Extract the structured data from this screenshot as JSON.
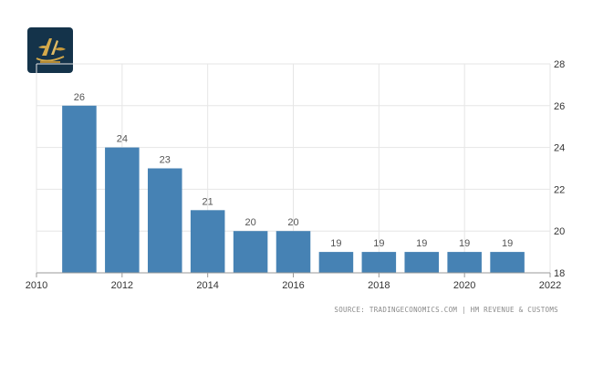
{
  "source_text": "SOURCE: TRADINGECONOMICS.COM | HM REVENUE & CUSTOMS",
  "chart_data": {
    "type": "bar",
    "x": [
      2011,
      2012,
      2013,
      2014,
      2015,
      2016,
      2017,
      2018,
      2019,
      2020,
      2021
    ],
    "values": [
      26,
      24,
      23,
      21,
      20,
      20,
      19,
      19,
      19,
      19,
      19
    ],
    "data_labels": [
      "26",
      "24",
      "23",
      "21",
      "20",
      "20",
      "19",
      "19",
      "19",
      "19",
      "19"
    ],
    "xlim": [
      2010,
      2022
    ],
    "ylim": [
      18,
      28
    ],
    "x_ticks": [
      2010,
      2012,
      2014,
      2016,
      2018,
      2020,
      2022
    ],
    "y_ticks": [
      18,
      20,
      22,
      24,
      26,
      28
    ],
    "y_axis_side": "right",
    "grid": true,
    "bar_color": "#4682b4",
    "title": "",
    "xlabel": "",
    "ylabel": ""
  }
}
